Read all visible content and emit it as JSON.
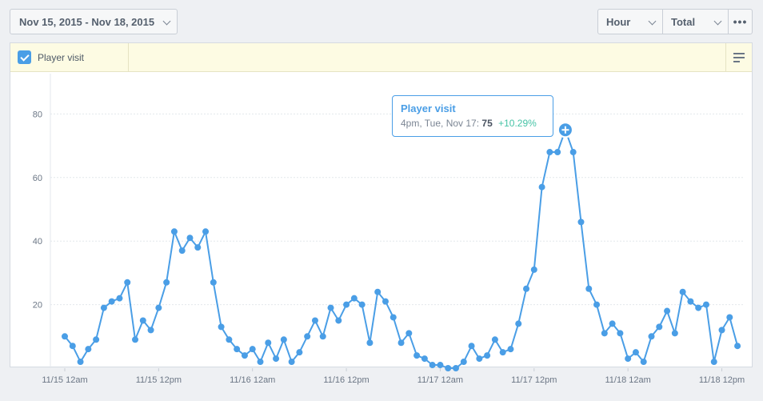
{
  "date_range": {
    "label": "Nov 15, 2015 - Nov 18, 2015"
  },
  "controls": {
    "interval": "Hour",
    "aggregate": "Total"
  },
  "legend": {
    "items": [
      {
        "label": "Player visit",
        "checked": true,
        "color": "#4a9ee6"
      }
    ]
  },
  "tooltip": {
    "title": "Player visit",
    "time": "4pm, Tue, Nov 17:",
    "value": "75",
    "change": "+10.29%"
  },
  "chart_data": {
    "type": "line",
    "title": "",
    "xlabel": "",
    "ylabel": "",
    "ylim": [
      0,
      90
    ],
    "yticks": [
      20,
      40,
      60,
      80
    ],
    "grid": true,
    "x_tick_labels": [
      "11/15 12am",
      "11/15 12pm",
      "11/16 12am",
      "11/16 12pm",
      "11/17 12am",
      "11/17 12pm",
      "11/18 12am",
      "11/18 12pm"
    ],
    "series": [
      {
        "name": "Player visit",
        "color": "#4a9ee6",
        "x_start": "2015-11-15 00:00",
        "interval": "hour",
        "values": [
          10,
          7,
          2,
          6,
          9,
          19,
          21,
          22,
          27,
          9,
          15,
          12,
          19,
          27,
          43,
          37,
          41,
          38,
          43,
          27,
          13,
          9,
          6,
          4,
          6,
          2,
          8,
          3,
          9,
          2,
          5,
          10,
          15,
          10,
          19,
          15,
          20,
          22,
          20,
          8,
          24,
          21,
          16,
          8,
          11,
          4,
          3,
          1,
          1,
          0,
          0,
          2,
          7,
          3,
          4,
          9,
          5,
          6,
          14,
          25,
          31,
          57,
          68,
          68,
          75,
          68,
          46,
          25,
          20,
          11,
          14,
          11,
          3,
          5,
          2,
          10,
          13,
          18,
          11,
          24,
          21,
          19,
          20,
          2,
          12,
          16,
          7
        ]
      }
    ],
    "highlight": {
      "x": "2015-11-17 16:00",
      "value": 75
    }
  }
}
